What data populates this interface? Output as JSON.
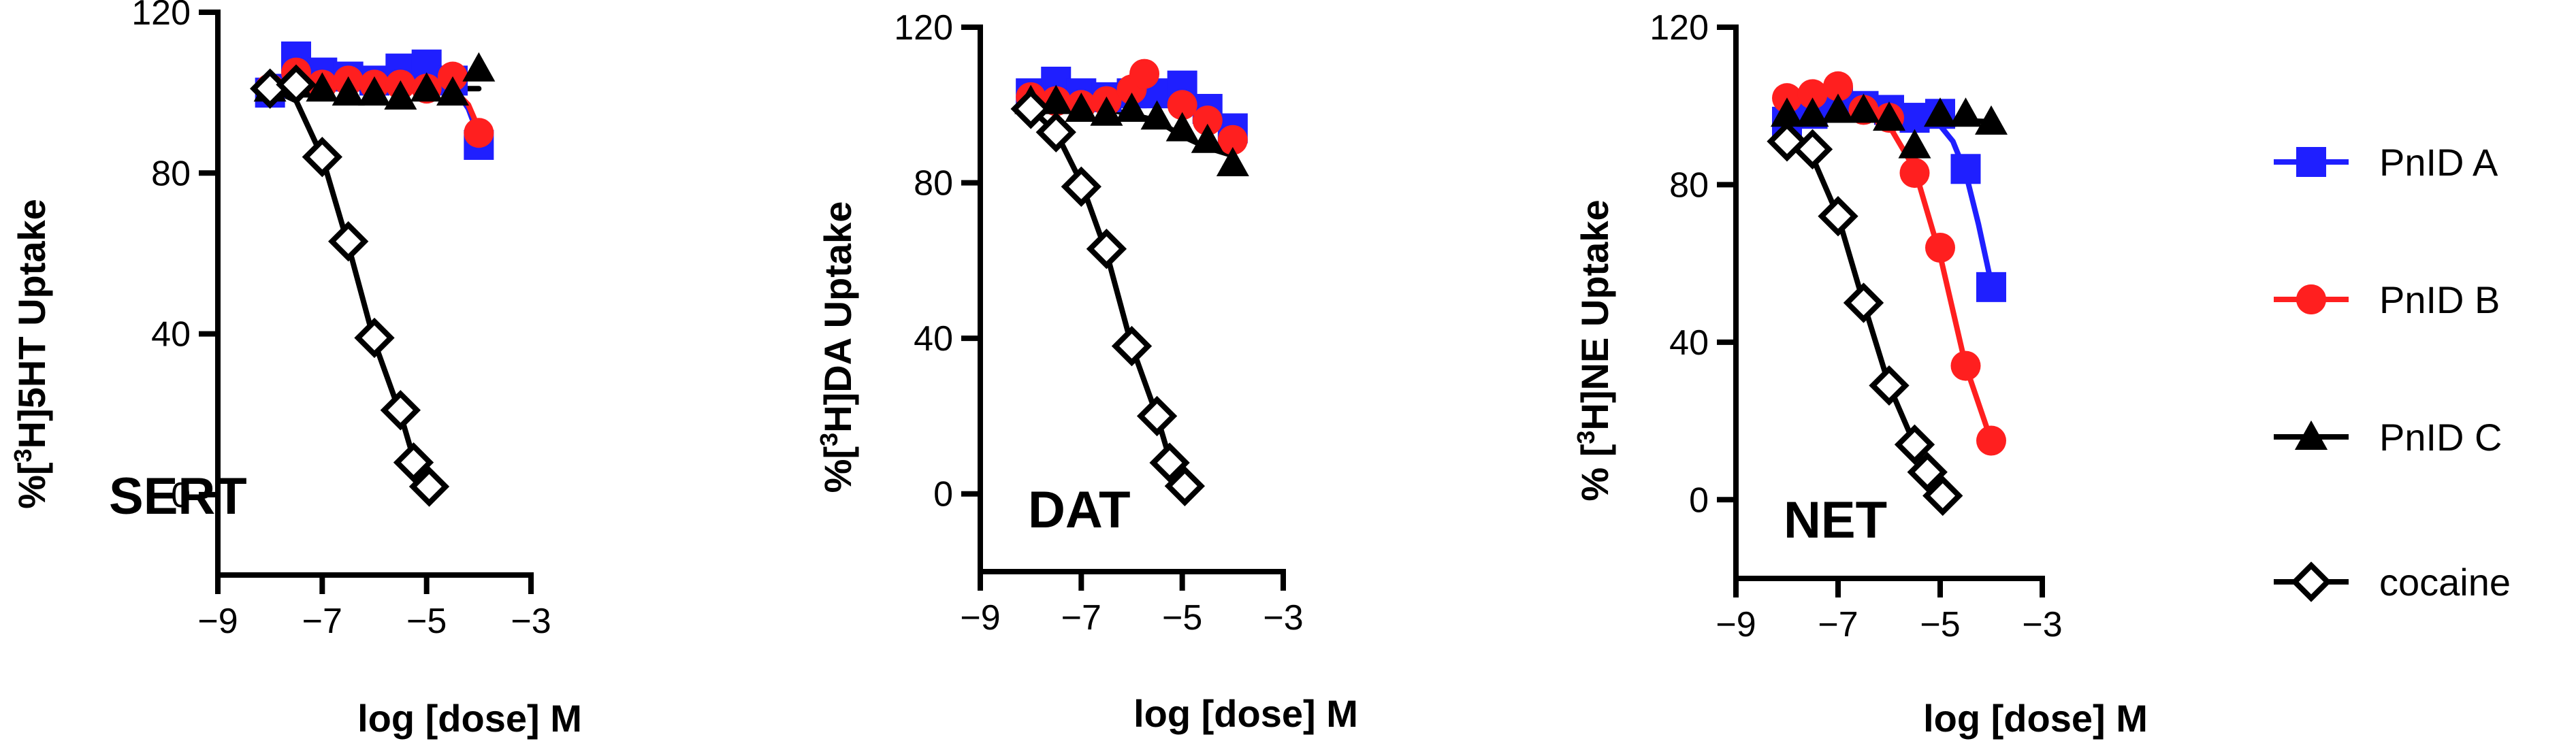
{
  "chart_data": [
    {
      "type": "scatter",
      "panel_label": "SERT",
      "ylabel_prefix": "%[",
      "ylabel_superscript": "3",
      "ylabel_suffix": "H]5HT Uptake",
      "xlabel": "log [dose] M",
      "xlim": [
        -9,
        -3
      ],
      "ylim": [
        -20,
        120
      ],
      "xticks": [
        -9,
        -7,
        -5,
        -3
      ],
      "xtick_labels": [
        "−9",
        "−7",
        "−5",
        "−3"
      ],
      "yticks": [
        0,
        40,
        80,
        120
      ],
      "ytick_labels": [
        "0",
        "40",
        "80",
        "120"
      ],
      "series": [
        {
          "name": "PnID A",
          "color": "#1f1fff",
          "marker": "square",
          "x": [
            -8,
            -7.5,
            -7,
            -6.5,
            -6,
            -5.5,
            -5,
            -4.5,
            -4
          ],
          "y": [
            100,
            109,
            105,
            104,
            103,
            106,
            107,
            103,
            87
          ],
          "curve_x": [
            -8,
            -5,
            -4.5,
            -4.2,
            -4
          ],
          "curve_y": [
            104,
            104,
            102,
            96,
            89
          ]
        },
        {
          "name": "PnID B",
          "color": "#ff1f1f",
          "marker": "circle",
          "x": [
            -8,
            -7.5,
            -7,
            -6.5,
            -6,
            -5.5,
            -5,
            -4.5,
            -4
          ],
          "y": [
            101,
            105,
            102,
            103,
            102,
            102,
            101,
            104,
            90
          ],
          "curve_x": [
            -8,
            -5,
            -4.5,
            -4.2,
            -4
          ],
          "curve_y": [
            102,
            102,
            101,
            97,
            91
          ]
        },
        {
          "name": "PnID C",
          "color": "#000000",
          "marker": "triangle",
          "x": [
            -8,
            -7.5,
            -7,
            -6.5,
            -6,
            -5.5,
            -5,
            -4.5,
            -4
          ],
          "y": [
            101,
            102,
            101,
            100,
            100,
            99,
            101,
            100,
            106
          ],
          "curve_x": [
            -8,
            -4
          ],
          "curve_y": [
            101,
            101
          ]
        },
        {
          "name": "cocaine",
          "color": "#000000",
          "marker": "diamond",
          "x": [
            -8,
            -7.5,
            -7,
            -6.5,
            -6,
            -5.5,
            -5.25,
            -4.95
          ],
          "y": [
            101,
            102,
            84,
            63,
            39,
            21,
            8,
            2
          ],
          "curve_x": [
            -8,
            -7.5,
            -7,
            -6.5,
            -6,
            -5.5,
            -5.25,
            -4.95
          ],
          "curve_y": [
            101,
            98,
            84,
            62,
            38,
            20,
            9,
            3
          ]
        }
      ]
    },
    {
      "type": "scatter",
      "panel_label": "DAT",
      "ylabel_prefix": "%[",
      "ylabel_superscript": "3",
      "ylabel_suffix": "H]DA Uptake",
      "xlabel": "log [dose] M",
      "xlim": [
        -9,
        -3
      ],
      "ylim": [
        -20,
        120
      ],
      "xticks": [
        -9,
        -7,
        -5,
        -3
      ],
      "xtick_labels": [
        "−9",
        "−7",
        "−5",
        "−3"
      ],
      "yticks": [
        0,
        40,
        80,
        120
      ],
      "ytick_labels": [
        "0",
        "40",
        "80",
        "120"
      ],
      "series": [
        {
          "name": "PnID A",
          "color": "#1f1fff",
          "marker": "square",
          "x": [
            -8,
            -7.5,
            -7,
            -6.5,
            -6,
            -5.5,
            -5,
            -4.5,
            -4
          ],
          "y": [
            103,
            106,
            103,
            102,
            103,
            103,
            105,
            99,
            94
          ],
          "curve_x": [
            -8,
            -6,
            -5,
            -4.5,
            -4
          ],
          "curve_y": [
            103,
            103,
            102,
            99,
            95
          ]
        },
        {
          "name": "PnID B",
          "color": "#ff1f1f",
          "marker": "circle",
          "x": [
            -8,
            -7.5,
            -7,
            -6.5,
            -6,
            -5.75,
            -5,
            -4.5,
            -4
          ],
          "y": [
            102,
            101,
            100,
            101,
            104,
            108,
            100,
            96,
            91
          ],
          "curve_x": [
            -8,
            -6,
            -5,
            -4.5,
            -4
          ],
          "curve_y": [
            102,
            102,
            100,
            97,
            92
          ]
        },
        {
          "name": "PnID C",
          "color": "#000000",
          "marker": "triangle",
          "x": [
            -8,
            -7.5,
            -7,
            -6.5,
            -6,
            -5.5,
            -5,
            -4.5,
            -4
          ],
          "y": [
            101,
            101,
            99,
            98,
            99,
            97,
            94,
            91,
            85
          ],
          "curve_x": [
            -8,
            -6.5,
            -5.5,
            -5,
            -4.5,
            -4
          ],
          "curve_y": [
            100,
            99,
            96,
            92,
            89,
            87
          ]
        },
        {
          "name": "cocaine",
          "color": "#000000",
          "marker": "diamond",
          "x": [
            -8,
            -7.5,
            -7,
            -6.5,
            -6,
            -5.5,
            -5.25,
            -4.95
          ],
          "y": [
            99,
            93,
            79,
            63,
            38,
            20,
            8,
            2
          ],
          "curve_x": [
            -8,
            -7.5,
            -7,
            -6.5,
            -6,
            -5.5,
            -5.25,
            -4.95
          ],
          "curve_y": [
            99,
            93,
            80,
            62,
            38,
            20,
            9,
            3
          ]
        }
      ]
    },
    {
      "type": "scatter",
      "panel_label": "NET",
      "ylabel_prefix": "% [",
      "ylabel_superscript": "3",
      "ylabel_suffix": "H]NE Uptake",
      "xlabel": "log [dose] M",
      "xlim": [
        -9,
        -3
      ],
      "ylim": [
        -20,
        120
      ],
      "xticks": [
        -9,
        -7,
        -5,
        -3
      ],
      "xtick_labels": [
        "−9",
        "−7",
        "−5",
        "−3"
      ],
      "yticks": [
        0,
        40,
        80,
        120
      ],
      "ytick_labels": [
        "0",
        "40",
        "80",
        "120"
      ],
      "series": [
        {
          "name": "PnID A",
          "color": "#1f1fff",
          "marker": "square",
          "x": [
            -8,
            -7.5,
            -7,
            -6.5,
            -6,
            -5.5,
            -5,
            -4.5,
            -4
          ],
          "y": [
            96,
            98,
            101,
            100,
            99,
            97,
            98,
            84,
            54
          ],
          "curve_x": [
            -8,
            -6,
            -5.5,
            -5,
            -4.75,
            -4.5,
            -4.25,
            -4
          ],
          "curve_y": [
            99,
            99,
            98,
            95,
            91,
            83,
            70,
            55
          ]
        },
        {
          "name": "PnID B",
          "color": "#ff1f1f",
          "marker": "circle",
          "x": [
            -8,
            -7.5,
            -7,
            -6.5,
            -6,
            -5.5,
            -5,
            -4.5,
            -4
          ],
          "y": [
            102,
            103,
            105,
            99,
            97,
            83,
            64,
            34,
            15
          ],
          "curve_x": [
            -8,
            -7,
            -6.5,
            -6,
            -5.5,
            -5,
            -4.5,
            -4
          ],
          "curve_y": [
            101,
            100,
            99,
            95,
            84,
            62,
            34,
            15
          ]
        },
        {
          "name": "PnID C",
          "color": "#000000",
          "marker": "triangle",
          "x": [
            -8,
            -7.5,
            -7,
            -6.5,
            -6,
            -5.5,
            -5,
            -4.5,
            -4
          ],
          "y": [
            98,
            98,
            99,
            99,
            97,
            90,
            98,
            98,
            96
          ],
          "curve_x": [
            -8,
            -4
          ],
          "curve_y": [
            98,
            96
          ]
        },
        {
          "name": "cocaine",
          "color": "#000000",
          "marker": "diamond",
          "x": [
            -8,
            -7.5,
            -7,
            -6.5,
            -6,
            -5.5,
            -5.25,
            -4.95
          ],
          "y": [
            91,
            89,
            72,
            50,
            29,
            14,
            7,
            1
          ],
          "curve_x": [
            -8,
            -7.5,
            -7,
            -6.5,
            -6,
            -5.5,
            -5.25,
            -4.95
          ],
          "curve_y": [
            93,
            87,
            72,
            50,
            29,
            14,
            7,
            1
          ]
        }
      ]
    }
  ],
  "legend": {
    "placement": "right",
    "entries": [
      {
        "label": "PnID A",
        "color": "#1f1fff",
        "marker": "square"
      },
      {
        "label": "PnID B",
        "color": "#ff1f1f",
        "marker": "circle"
      },
      {
        "label": "PnID C",
        "color": "#000000",
        "marker": "triangle"
      },
      {
        "label": "cocaine",
        "color": "#000000",
        "marker": "diamond"
      }
    ]
  }
}
